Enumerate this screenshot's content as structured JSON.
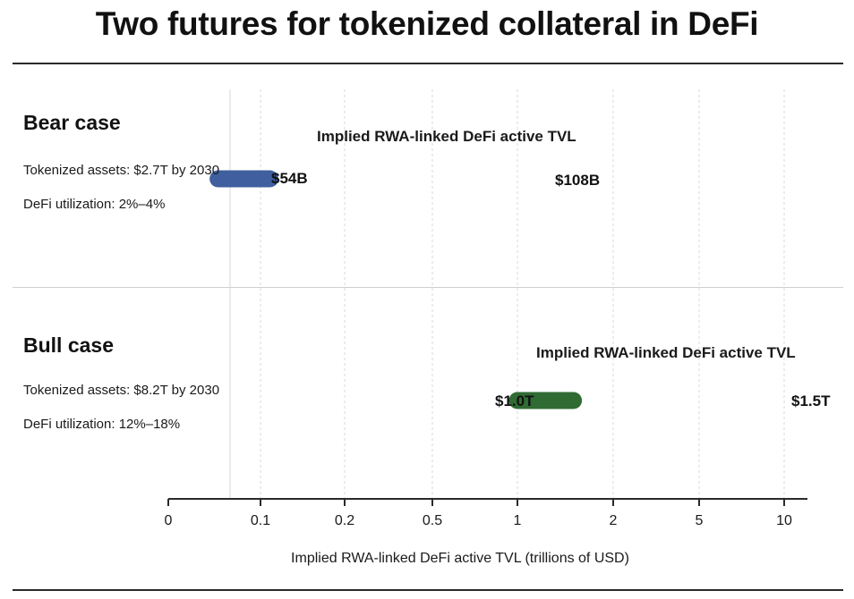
{
  "title": "Two futures for tokenized collateral in DeFi",
  "cases": {
    "bear": {
      "title": "Bear case",
      "tokenized": "Tokenized assets: $2.7T by 2030",
      "utilization": "DeFi utilization: 2%–4%",
      "range_caption": "Implied RWA-linked DeFi active TVL",
      "low_label": "$54B",
      "high_label": "$108B"
    },
    "bull": {
      "title": "Bull case",
      "tokenized": "Tokenized assets: $8.2T by 2030",
      "utilization": "DeFi utilization: 12%–18%",
      "range_caption": "Implied RWA-linked DeFi active TVL",
      "low_label": "$1.0T",
      "high_label": "$1.5T"
    }
  },
  "chart_data": {
    "type": "range-bar",
    "xlabel": "Implied RWA-linked DeFi active TVL (trillions of USD)",
    "x_ticks": [
      "0",
      "0.1",
      "0.2",
      "0.5",
      "1",
      "2",
      "5",
      "10"
    ],
    "x_scale": "log",
    "grid": "vertical dashed",
    "series": [
      {
        "name": "Bear case",
        "low": 0.054,
        "high": 0.108,
        "color": "#3f5f9e"
      },
      {
        "name": "Bull case",
        "low": 1.0,
        "high": 1.5,
        "color": "#2f6b33"
      }
    ]
  }
}
